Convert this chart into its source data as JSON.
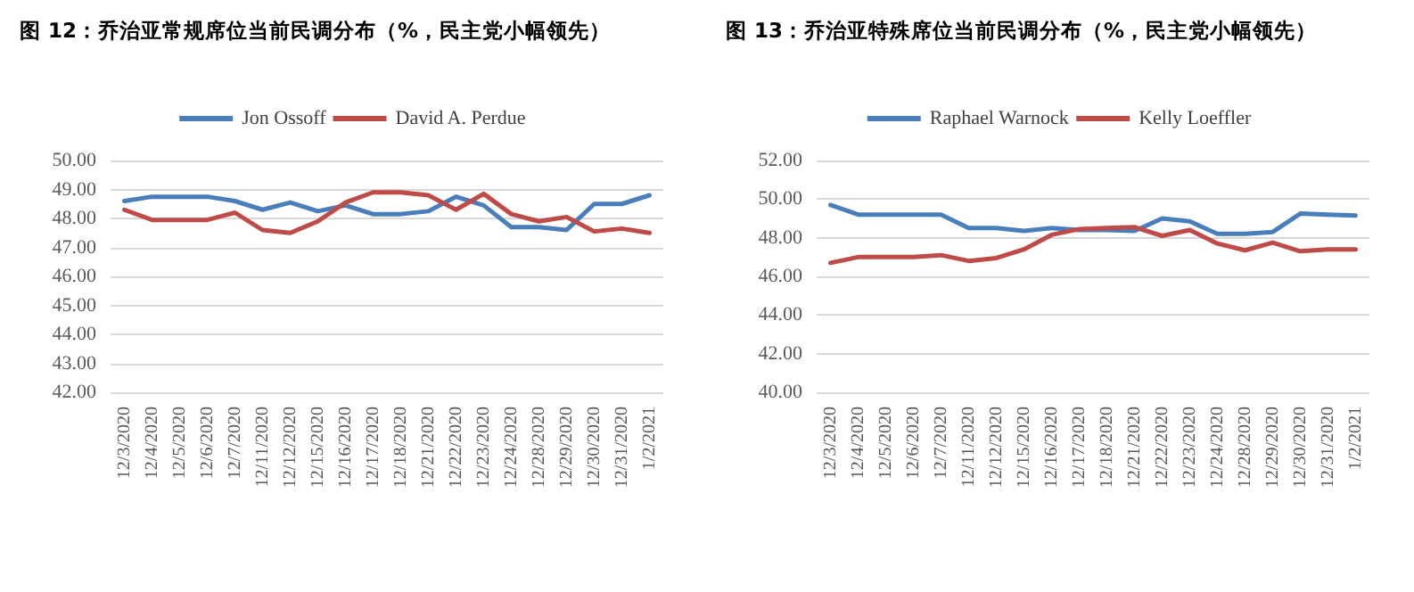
{
  "chart_data": [
    {
      "type": "line",
      "title": "图 12：乔治亚常规席位当前民调分布（%，民主党小幅领先）",
      "categories": [
        "12/3/2020",
        "12/4/2020",
        "12/5/2020",
        "12/6/2020",
        "12/7/2020",
        "12/11/2020",
        "12/12/2020",
        "12/15/2020",
        "12/16/2020",
        "12/17/2020",
        "12/18/2020",
        "12/21/2020",
        "12/22/2020",
        "12/23/2020",
        "12/24/2020",
        "12/28/2020",
        "12/29/2020",
        "12/30/2020",
        "12/31/2020",
        "1/2/2021"
      ],
      "series": [
        {
          "name": "Jon Ossoff",
          "color": "#4a7ebb",
          "values": [
            48.6,
            48.75,
            48.75,
            48.75,
            48.6,
            48.3,
            48.55,
            48.25,
            48.45,
            48.15,
            48.15,
            48.25,
            48.75,
            48.45,
            47.7,
            47.7,
            47.6,
            48.5,
            48.5,
            48.8
          ]
        },
        {
          "name": "David A. Perdue",
          "color": "#be4b48",
          "values": [
            48.3,
            47.95,
            47.95,
            47.95,
            48.2,
            47.6,
            47.5,
            47.9,
            48.55,
            48.9,
            48.9,
            48.8,
            48.3,
            48.85,
            48.15,
            47.9,
            48.05,
            47.55,
            47.65,
            47.5
          ]
        }
      ],
      "ylim": [
        42,
        50
      ],
      "yticks": [
        {
          "value": 42,
          "label": "42.00"
        },
        {
          "value": 43,
          "label": "43.00"
        },
        {
          "value": 44,
          "label": "44.00"
        },
        {
          "value": 45,
          "label": "45.00"
        },
        {
          "value": 46,
          "label": "46.00"
        },
        {
          "value": 47,
          "label": "47.00"
        },
        {
          "value": 48,
          "label": "48.00"
        },
        {
          "value": 49,
          "label": "49.00"
        },
        {
          "value": 50,
          "label": "50.00"
        }
      ],
      "grid": "y",
      "legend": "top",
      "marker": "none",
      "line_style": "solid"
    },
    {
      "type": "line",
      "title": "图 13：乔治亚特殊席位当前民调分布（%，民主党小幅领先）",
      "categories": [
        "12/3/2020",
        "12/4/2020",
        "12/5/2020",
        "12/6/2020",
        "12/7/2020",
        "12/11/2020",
        "12/12/2020",
        "12/15/2020",
        "12/16/2020",
        "12/17/2020",
        "12/18/2020",
        "12/21/2020",
        "12/22/2020",
        "12/23/2020",
        "12/24/2020",
        "12/28/2020",
        "12/29/2020",
        "12/30/2020",
        "12/31/2020",
        "1/2/2021"
      ],
      "series": [
        {
          "name": "Raphael Warnock",
          "color": "#4a7ebb",
          "values": [
            49.7,
            49.2,
            49.2,
            49.2,
            49.2,
            48.5,
            48.5,
            48.35,
            48.5,
            48.4,
            48.4,
            48.35,
            49.0,
            48.85,
            48.2,
            48.2,
            48.3,
            49.25,
            49.2,
            49.15
          ]
        },
        {
          "name": "Kelly Loeffler",
          "color": "#be4b48",
          "values": [
            46.7,
            47.0,
            47.0,
            47.0,
            47.1,
            46.8,
            46.95,
            47.4,
            48.15,
            48.45,
            48.5,
            48.55,
            48.1,
            48.4,
            47.7,
            47.35,
            47.75,
            47.3,
            47.4,
            47.4
          ]
        }
      ],
      "ylim": [
        40,
        52
      ],
      "yticks": [
        {
          "value": 40,
          "label": "40.00"
        },
        {
          "value": 42,
          "label": "42.00"
        },
        {
          "value": 44,
          "label": "44.00"
        },
        {
          "value": 46,
          "label": "46.00"
        },
        {
          "value": 48,
          "label": "48.00"
        },
        {
          "value": 50,
          "label": "50.00"
        },
        {
          "value": 52,
          "label": "52.00"
        }
      ],
      "grid": "y",
      "legend": "top",
      "marker": "none",
      "line_style": "solid"
    }
  ]
}
